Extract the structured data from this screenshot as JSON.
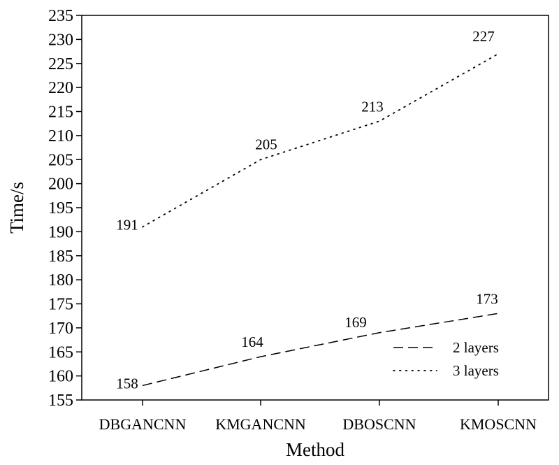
{
  "chart_data": {
    "type": "line",
    "xlabel": "Method",
    "ylabel": "Time/s",
    "categories": [
      "DBGANCNN",
      "KMGANCNN",
      "DBOSCNN",
      "KMOSCNN"
    ],
    "ylim": [
      155,
      235
    ],
    "yticks": [
      155,
      160,
      165,
      170,
      175,
      180,
      185,
      190,
      195,
      200,
      205,
      210,
      215,
      220,
      225,
      230,
      235
    ],
    "grid": false,
    "legend_position": "lower-right",
    "series": [
      {
        "name": "2 layers",
        "values": [
          158,
          164,
          169,
          173
        ],
        "style": "dashed",
        "color": "#000000"
      },
      {
        "name": "3 layers",
        "values": [
          191,
          205,
          213,
          227
        ],
        "style": "dotted",
        "color": "#000000"
      }
    ]
  }
}
